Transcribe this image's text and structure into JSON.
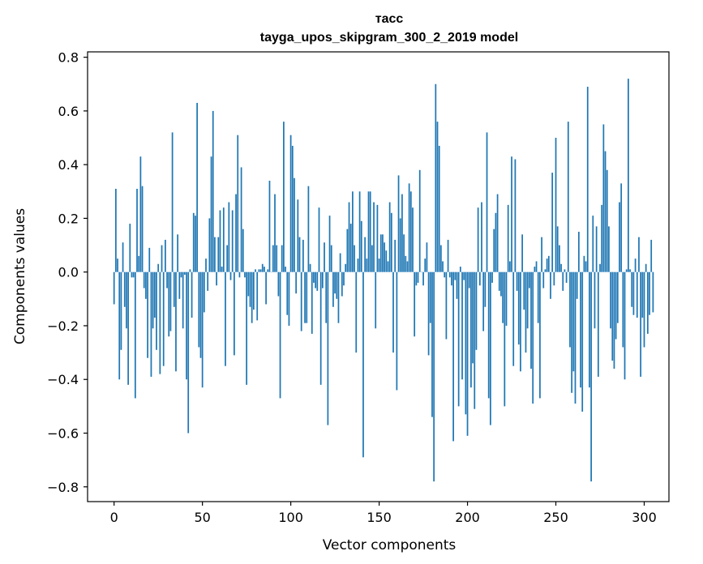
{
  "chart_data": {
    "type": "bar",
    "title": "тасс",
    "subtitle": "tayga_upos_skipgram_300_2_2019 model",
    "xlabel": "Vector components",
    "ylabel": "Components values",
    "xlim": [
      -15,
      314
    ],
    "ylim": [
      -0.855,
      0.82
    ],
    "xticks": [
      0,
      50,
      100,
      150,
      200,
      250,
      300
    ],
    "yticks": [
      -0.8,
      -0.6,
      -0.4,
      -0.2,
      0.0,
      0.2,
      0.4,
      0.6,
      0.8
    ],
    "ytick_labels": [
      "−0.8",
      "−0.6",
      "−0.4",
      "−0.2",
      "0.0",
      "0.2",
      "0.4",
      "0.6",
      "0.8"
    ],
    "bar_color": "#1f77b4",
    "series": [
      {
        "name": "тасс",
        "values": [
          -0.12,
          0.31,
          0.05,
          -0.4,
          -0.29,
          0.11,
          -0.13,
          -0.21,
          -0.42,
          0.18,
          -0.02,
          -0.02,
          -0.47,
          0.31,
          0.06,
          0.43,
          0.32,
          -0.06,
          -0.1,
          -0.32,
          0.09,
          -0.39,
          -0.21,
          -0.17,
          -0.29,
          0.03,
          -0.38,
          0.1,
          -0.35,
          0.12,
          -0.06,
          -0.24,
          -0.22,
          0.52,
          -0.13,
          -0.37,
          0.14,
          -0.1,
          -0.02,
          -0.21,
          -0.01,
          -0.4,
          -0.6,
          0.01,
          -0.17,
          0.22,
          0.21,
          0.63,
          -0.28,
          -0.32,
          -0.43,
          -0.15,
          0.05,
          -0.07,
          0.2,
          0.43,
          0.6,
          0.13,
          -0.05,
          0.13,
          0.23,
          0.02,
          0.24,
          -0.35,
          0.1,
          0.26,
          -0.03,
          0.23,
          -0.31,
          0.29,
          0.51,
          -0.02,
          0.39,
          0.16,
          -0.02,
          -0.42,
          -0.09,
          -0.13,
          -0.19,
          -0.14,
          0.01,
          -0.18,
          0.01,
          0.01,
          0.03,
          0.02,
          -0.12,
          0.01,
          0.34,
          0.0,
          0.1,
          0.29,
          0.1,
          -0.09,
          -0.47,
          0.1,
          0.56,
          0.02,
          -0.16,
          -0.2,
          0.51,
          0.47,
          0.35,
          -0.08,
          0.27,
          0.13,
          -0.22,
          0.12,
          -0.19,
          -0.19,
          0.32,
          0.03,
          -0.23,
          -0.04,
          -0.06,
          -0.07,
          0.24,
          -0.42,
          -0.06,
          0.11,
          -0.19,
          -0.57,
          0.21,
          0.1,
          -0.13,
          -0.08,
          -0.1,
          -0.19,
          0.07,
          -0.09,
          -0.05,
          0.03,
          0.16,
          0.26,
          0.18,
          0.3,
          0.1,
          -0.3,
          0.05,
          0.3,
          0.19,
          -0.69,
          0.13,
          0.05,
          0.3,
          0.3,
          0.1,
          0.26,
          -0.21,
          0.25,
          0.05,
          0.14,
          0.14,
          0.11,
          0.08,
          0.04,
          0.26,
          0.22,
          -0.3,
          0.12,
          -0.44,
          0.36,
          0.2,
          0.29,
          0.14,
          0.06,
          0.04,
          0.33,
          0.3,
          0.24,
          -0.24,
          -0.05,
          -0.04,
          0.38,
          0.0,
          -0.05,
          0.05,
          0.11,
          -0.31,
          -0.19,
          -0.54,
          -0.78,
          0.7,
          0.56,
          0.47,
          0.1,
          0.04,
          -0.02,
          -0.25,
          0.12,
          -0.02,
          -0.05,
          -0.63,
          -0.03,
          -0.1,
          -0.5,
          0.02,
          -0.4,
          -0.03,
          -0.53,
          -0.61,
          -0.06,
          -0.43,
          -0.34,
          -0.51,
          -0.29,
          0.24,
          -0.05,
          0.26,
          -0.22,
          -0.13,
          0.52,
          -0.47,
          -0.57,
          -0.04,
          0.16,
          0.22,
          0.29,
          -0.07,
          -0.09,
          -0.19,
          -0.5,
          -0.2,
          0.25,
          0.04,
          0.43,
          -0.35,
          0.42,
          -0.07,
          -0.27,
          -0.37,
          0.14,
          -0.14,
          -0.3,
          -0.21,
          -0.06,
          -0.36,
          -0.49,
          0.02,
          0.04,
          -0.19,
          -0.47,
          0.13,
          -0.06,
          0.01,
          0.05,
          0.06,
          -0.1,
          0.37,
          -0.05,
          0.5,
          0.17,
          0.1,
          0.03,
          -0.07,
          0.01,
          -0.04,
          0.56,
          -0.28,
          -0.45,
          -0.37,
          -0.49,
          -0.1,
          0.15,
          -0.43,
          -0.52,
          0.06,
          0.04,
          0.69,
          -0.43,
          -0.78,
          0.21,
          -0.21,
          0.17,
          -0.39,
          0.03,
          0.25,
          0.55,
          0.45,
          0.38,
          0.17,
          -0.21,
          -0.33,
          -0.36,
          -0.25,
          -0.19,
          0.26,
          0.33,
          -0.28,
          -0.4,
          0.01,
          0.72,
          0.01,
          -0.13,
          -0.16,
          0.05,
          -0.17,
          0.13,
          -0.39,
          -0.17,
          -0.28,
          0.03,
          -0.23,
          -0.16,
          0.12,
          -0.15
        ]
      }
    ]
  }
}
